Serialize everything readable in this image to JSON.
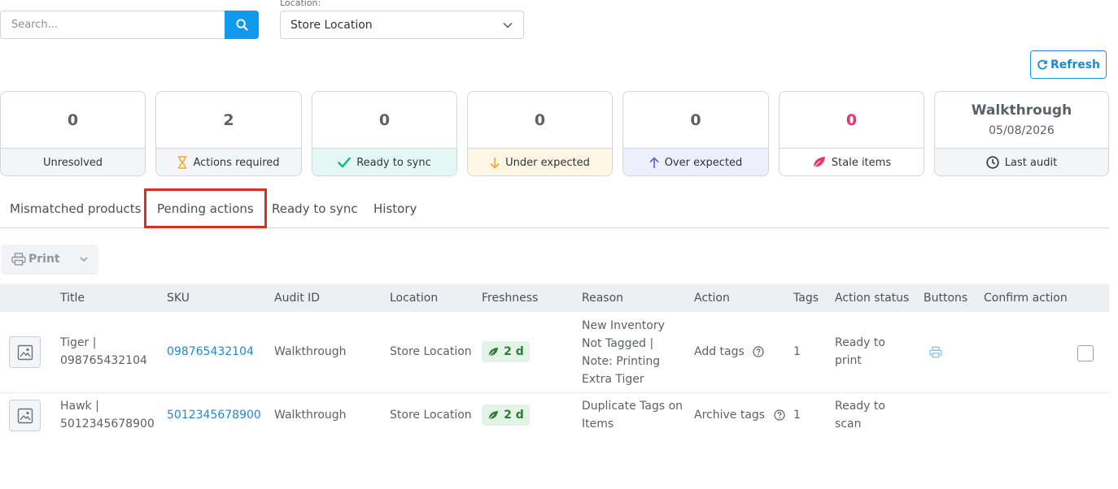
{
  "search": {
    "placeholder": "Search..."
  },
  "location": {
    "label": "Location:",
    "selected": "Store Location"
  },
  "refresh_label": "Refresh",
  "stats": [
    {
      "value": "0",
      "label": "Unresolved",
      "bg": "#f3f5f8"
    },
    {
      "value": "2",
      "label": "Actions required",
      "bg": "#f3f5f8",
      "icon_color": "#f5a623"
    },
    {
      "value": "0",
      "label": "Ready to sync",
      "bg": "#e3f8f2",
      "icon_color": "#12b886"
    },
    {
      "value": "0",
      "label": "Under expected",
      "bg": "#fff6e6",
      "icon_color": "#f5a623"
    },
    {
      "value": "0",
      "label": "Over expected",
      "bg": "#efeefc",
      "icon_color": "#5b5fe0"
    },
    {
      "value": "0",
      "label": "Stale items",
      "bg": "#ffffff",
      "icon_color": "#f0306a"
    },
    {
      "value": "Walkthrough",
      "date": "05/08/2026",
      "label": "Last audit",
      "bg": "#f3f5f8"
    }
  ],
  "tabs": [
    "Mismatched products",
    "Pending actions",
    "Ready to sync",
    "History"
  ],
  "active_tab": "Pending actions",
  "print_label": "Print",
  "table": {
    "columns": [
      "Title",
      "SKU",
      "Audit ID",
      "Location",
      "Freshness",
      "Reason",
      "Action",
      "Tags",
      "Action status",
      "Buttons",
      "Confirm action"
    ],
    "rows": [
      {
        "title_line1": "Tiger |",
        "title_line2": "098765432104",
        "sku": "098765432104",
        "audit_id": "Walkthrough",
        "location": "Store Location",
        "freshness": "2 d",
        "reason_lines": [
          "New Inventory",
          "Not Tagged |",
          "Note: Printing",
          "Extra Tiger"
        ],
        "action": "Add tags",
        "tags": "1",
        "status_line1": "Ready to",
        "status_line2": "print"
      },
      {
        "title_line1": "Hawk |",
        "title_line2": "5012345678900",
        "sku": "5012345678900",
        "audit_id": "Walkthrough",
        "location": "Store Location",
        "freshness": "2 d",
        "reason_lines": [
          "Duplicate Tags on",
          "Items"
        ],
        "action": "Archive tags",
        "tags": "1",
        "status_line1": "Ready to",
        "status_line2": "scan"
      }
    ]
  },
  "colors": {
    "accent": "#1199ee",
    "highlight": "#e02d22",
    "fresh_green": "#2e7d32"
  }
}
